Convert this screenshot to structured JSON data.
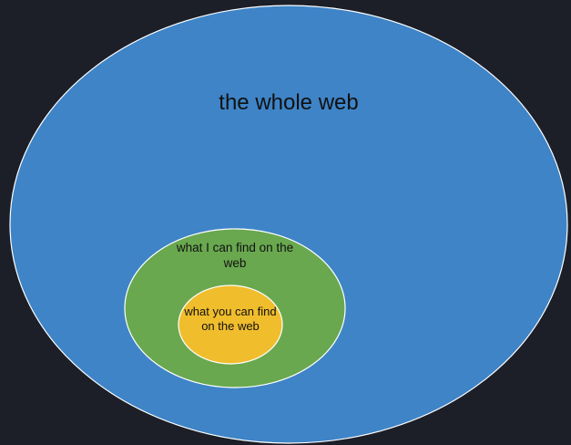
{
  "diagram": {
    "type": "nested-ellipses",
    "outer": {
      "label": "the whole web",
      "fill": "#3e84c7",
      "stroke": "#ffffff"
    },
    "middle": {
      "label": "what I can find on the web",
      "fill": "#69a84f",
      "stroke": "#ffffff"
    },
    "inner": {
      "label": "what you can find on the web",
      "fill": "#f0bd2c",
      "stroke": "#ffffff"
    }
  },
  "background": "#1c1f28"
}
